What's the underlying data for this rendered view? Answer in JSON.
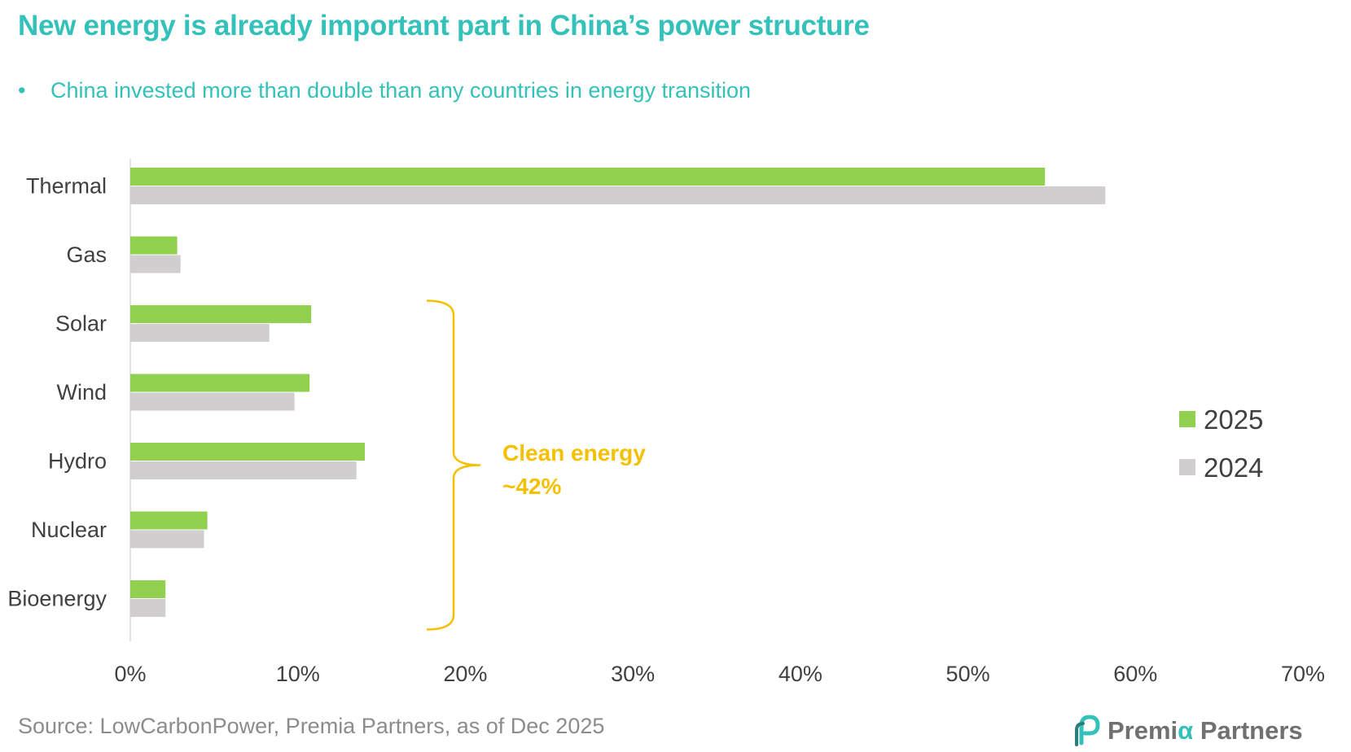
{
  "title": "New energy is already important part in China’s power structure",
  "subtitle": "China invested more than double than any countries in energy transition",
  "source": "Source: LowCarbonPower, Premia Partners, as of Dec 2025",
  "logo": {
    "prefix": "Premi",
    "alpha": "α",
    "suffix": " Partners",
    "icon": "premia-logo-icon"
  },
  "colors": {
    "accent": "#33c1b9",
    "series_2025": "#92d050",
    "series_2024": "#d0cece",
    "annotation": "#f5c000",
    "text": "#404040"
  },
  "chart_data": {
    "type": "bar",
    "orientation": "horizontal",
    "categories": [
      "Thermal",
      "Gas",
      "Solar",
      "Wind",
      "Hydro",
      "Nuclear",
      "Bioenergy"
    ],
    "series": [
      {
        "name": "2025",
        "values": [
          54.6,
          2.8,
          10.8,
          10.7,
          14.0,
          4.6,
          2.1
        ]
      },
      {
        "name": "2024",
        "values": [
          58.2,
          3.0,
          8.3,
          9.8,
          13.5,
          4.4,
          2.1
        ]
      }
    ],
    "xlim": [
      0,
      70
    ],
    "xticks": [
      0,
      10,
      20,
      30,
      40,
      50,
      60,
      70
    ],
    "tick_labels": [
      "0%",
      "10%",
      "20%",
      "30%",
      "40%",
      "50%",
      "60%",
      "70%"
    ],
    "xlabel": "",
    "ylabel": "",
    "legend": "right",
    "annotation": {
      "text_line1": "Clean energy",
      "text_line2": "~42%",
      "brace_from": "Solar",
      "brace_to": "Bioenergy"
    }
  }
}
